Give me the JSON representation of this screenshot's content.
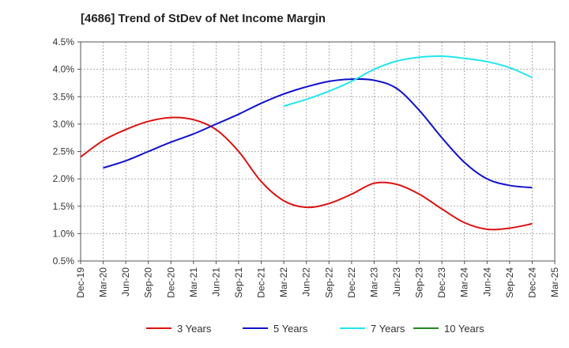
{
  "chart_data": {
    "type": "line",
    "title": "[4686]  Trend of StDev of Net Income Margin",
    "x": [
      "Dec-19",
      "Mar-20",
      "Jun-20",
      "Sep-20",
      "Dec-20",
      "Mar-21",
      "Jun-21",
      "Sep-21",
      "Dec-21",
      "Mar-22",
      "Jun-22",
      "Sep-22",
      "Dec-22",
      "Mar-23",
      "Jun-23",
      "Sep-23",
      "Dec-23",
      "Mar-24",
      "Jun-24",
      "Sep-24",
      "Dec-24",
      "Mar-25"
    ],
    "y_ticks": [
      "0.5%",
      "1.0%",
      "1.5%",
      "2.0%",
      "2.5%",
      "3.0%",
      "3.5%",
      "4.0%",
      "4.5%"
    ],
    "ylim": [
      0.5,
      4.5
    ],
    "grid": true,
    "legend_position": "bottom",
    "series": [
      {
        "name": "3 Years",
        "color": "#dd1111",
        "values": [
          2.4,
          2.7,
          2.9,
          3.05,
          3.12,
          3.08,
          2.9,
          2.5,
          1.95,
          1.6,
          1.48,
          1.55,
          1.72,
          1.92,
          1.9,
          1.72,
          1.45,
          1.2,
          1.08,
          1.1,
          1.18,
          null
        ]
      },
      {
        "name": "5 Years",
        "color": "#1111cc",
        "values": [
          null,
          2.2,
          2.33,
          2.5,
          2.67,
          2.82,
          3.0,
          3.18,
          3.38,
          3.55,
          3.68,
          3.78,
          3.82,
          3.8,
          3.65,
          3.25,
          2.75,
          2.3,
          2.0,
          1.88,
          1.84,
          null
        ]
      },
      {
        "name": "7 Years",
        "color": "#22e5ee",
        "values": [
          null,
          null,
          null,
          null,
          null,
          null,
          null,
          null,
          null,
          3.33,
          3.45,
          3.6,
          3.78,
          4.0,
          4.15,
          4.22,
          4.24,
          4.2,
          4.14,
          4.03,
          3.85,
          null
        ]
      },
      {
        "name": "10 Years",
        "color": "#228b22",
        "values": [
          null,
          null,
          null,
          null,
          null,
          null,
          null,
          null,
          null,
          null,
          null,
          null,
          null,
          null,
          null,
          null,
          null,
          null,
          null,
          null,
          null,
          null
        ]
      }
    ]
  }
}
